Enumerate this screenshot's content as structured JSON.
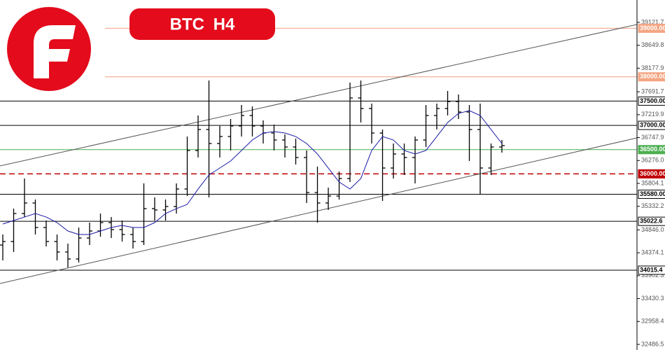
{
  "chart_data": {
    "type": "candlestick",
    "title": "BTC H4",
    "ylim": [
      32371,
      39583
    ],
    "yticks": [
      39121.7,
      38649.8,
      38177.9,
      37691.7,
      37219.9,
      36747.9,
      {
        "value": 36276,
        "label": "36276.0"
      },
      35804.1,
      35332.2,
      {
        "value": 34846,
        "label": "34846.0"
      },
      34374.1,
      33902.3,
      33430.3,
      32958.4,
      32486.5
    ],
    "color": "#000000",
    "open": [
      34534,
      34606,
      35183,
      35400,
      34895,
      34606,
      34390,
      34246,
      34679,
      34823,
      34996,
      34852,
      34751,
      34606,
      35284,
      35256,
      35328,
      35688,
      36482,
      36914,
      36626,
      36770,
      36987,
      37203,
      36987,
      36842,
      36698,
      36554,
      36337,
      35616,
      35400,
      35544,
      35905,
      37564,
      37347,
      36842,
      36121,
      36410,
      36337,
      36698,
      37203,
      37347,
      37491,
      37275,
      36914,
      36121,
      36554
    ],
    "high": [
      34751,
      35284,
      35905,
      35472,
      35039,
      34751,
      34563,
      34895,
      34996,
      35183,
      35111,
      35039,
      34895,
      35804,
      35515,
      35472,
      35804,
      36770,
      37203,
      37924,
      36987,
      37131,
      37419,
      37390,
      37102,
      37015,
      36813,
      36727,
      36482,
      36150,
      35717,
      36049,
      37881,
      37924,
      37448,
      36914,
      36626,
      36626,
      36770,
      37419,
      37448,
      37708,
      37636,
      37419,
      37448,
      36626,
      36698
    ],
    "low": [
      34217,
      34390,
      35111,
      34751,
      34505,
      34217,
      34073,
      34174,
      34534,
      34707,
      34679,
      34606,
      34462,
      34534,
      35039,
      35039,
      35183,
      35544,
      36337,
      35515,
      36337,
      36482,
      36770,
      36770,
      36626,
      36482,
      36337,
      36193,
      35400,
      34996,
      35256,
      35472,
      35833,
      37059,
      36626,
      35443,
      35905,
      35977,
      35804,
      36554,
      36914,
      37203,
      37131,
      36265,
      35573,
      35977,
      36438
    ],
    "close": [
      34606,
      35183,
      35400,
      34895,
      34606,
      34390,
      34246,
      34679,
      34823,
      34996,
      34852,
      34751,
      34606,
      35284,
      35256,
      35328,
      35688,
      36482,
      36914,
      36626,
      36770,
      36987,
      37203,
      36987,
      36842,
      36698,
      36554,
      36337,
      35616,
      35400,
      35544,
      35905,
      37564,
      37347,
      36842,
      36121,
      36410,
      36337,
      36698,
      37203,
      37347,
      37491,
      37275,
      36914,
      36121,
      36554,
      36583
    ],
    "ma": {
      "color": "#1a1aa6",
      "values": [
        34967,
        35039,
        35111,
        35183,
        35111,
        34996,
        34823,
        34751,
        34751,
        34823,
        34895,
        34938,
        34895,
        34895,
        34996,
        35183,
        35284,
        35371,
        35688,
        35977,
        36121,
        36265,
        36482,
        36698,
        36842,
        36871,
        36842,
        36770,
        36626,
        36410,
        36121,
        35833,
        35688,
        35905,
        36482,
        36770,
        36698,
        36482,
        36410,
        36482,
        36770,
        37059,
        37246,
        37304,
        37203,
        36914,
        36626
      ]
    },
    "levels": [
      {
        "value": 39000,
        "label": "39000.00",
        "color": "#f0a080",
        "label_bg": "#f4a582",
        "label_color": "#ffffff",
        "dashed": false
      },
      {
        "value": 38000,
        "label": "38000.00",
        "color": "#f0a080",
        "label_bg": "#f4a582",
        "label_color": "#ffffff",
        "dashed": false
      },
      {
        "value": 37500,
        "label": "37500.00",
        "color": "#000000",
        "label_bg": "#ffffff",
        "label_color": "#000000",
        "dashed": false
      },
      {
        "value": 37000,
        "label": "37000.00",
        "color": "#000000",
        "label_bg": "#ffffff",
        "label_color": "#000000",
        "dashed": false
      },
      {
        "value": 36500,
        "label": "36500.00",
        "color": "#4caf50",
        "label_bg": "#4caf50",
        "label_color": "#ffffff",
        "dashed": false
      },
      {
        "value": 36000,
        "label": "36000.00",
        "color": "#c00000",
        "label_bg": "#c00000",
        "label_color": "#ffffff",
        "dashed": true
      },
      {
        "value": 35580,
        "label": "35580.00",
        "color": "#000000",
        "label_bg": "#ffffff",
        "label_color": "#000000",
        "dashed": false
      },
      {
        "value": 35022.6,
        "label": "35022.6",
        "color": "#000000",
        "label_bg": "#ffffff",
        "label_color": "#000000",
        "dashed": false
      },
      {
        "value": 34015.4,
        "label": "34015.4",
        "color": "#000000",
        "label_bg": "#ffffff",
        "label_color": "#000000",
        "dashed": false
      }
    ]
  }
}
